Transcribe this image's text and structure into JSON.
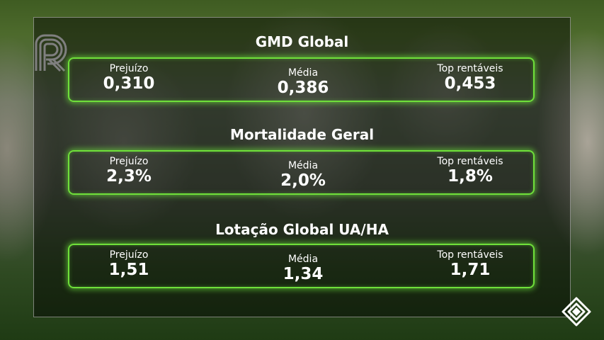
{
  "sections": [
    {
      "title": "GMD Global",
      "left": {
        "label": "Prejuízo",
        "value": "0,310"
      },
      "middle": {
        "label": "Média",
        "value": "0,386"
      },
      "right": {
        "label": "Top rentáveis",
        "value": "0,453"
      }
    },
    {
      "title": "Mortalidade Geral",
      "left": {
        "label": "Prejuízo",
        "value": "2,3%"
      },
      "middle": {
        "label": "Média",
        "value": "2,0%"
      },
      "right": {
        "label": "Top rentáveis",
        "value": "1,8%"
      }
    },
    {
      "title": "Lotação Global UA/HA",
      "left": {
        "label": "Prejuízo",
        "value": "1,51"
      },
      "middle": {
        "label": "Média",
        "value": "1,34"
      },
      "right": {
        "label": "Top rentáveis",
        "value": "1,71"
      }
    }
  ],
  "colors": {
    "accent": "#6fe03a",
    "text": "#ffffff"
  },
  "icons": {
    "logo": "r-logo-icon",
    "brand": "diamond-brand-icon"
  }
}
